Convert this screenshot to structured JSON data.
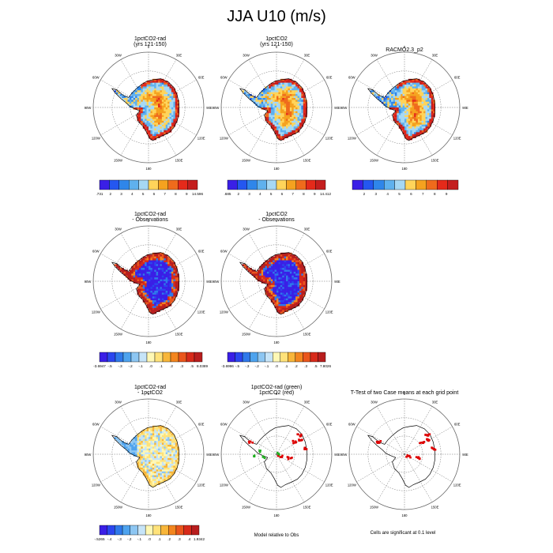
{
  "title": "JJA U10 (m/s)",
  "colors": {
    "scale": [
      "#3a1fe6",
      "#2457f0",
      "#2f86ea",
      "#5fb1ee",
      "#a6d8f4",
      "#ffd45a",
      "#f5a21f",
      "#ef6b1c",
      "#e52a1a",
      "#c41e1e"
    ],
    "diff_scale": [
      "#3a1fe6",
      "#2b46ef",
      "#2f79ea",
      "#4ea3ee",
      "#8dc6f2",
      "#c6e4f8",
      "#fff8b5",
      "#ffe27a",
      "#f8b63a",
      "#f3861f",
      "#ea561c",
      "#d72a1a",
      "#b81e1e"
    ],
    "land_fill": "#ffffff",
    "sig_red": "#dd0000",
    "sig_green": "#1fb01f"
  },
  "map_labels": {
    "lon": [
      "0",
      "30E",
      "60E",
      "90E",
      "120E",
      "150E",
      "180",
      "150W",
      "120W",
      "90W",
      "60W",
      "30W"
    ]
  },
  "panels": [
    {
      "id": "p1",
      "title_line1": "1pctCO2-rad",
      "title_line2": "(yrs 121-150)",
      "kind": "wind"
    },
    {
      "id": "p2",
      "title_line1": "1pctCO2",
      "title_line2": "(yrs 121-150)",
      "kind": "wind"
    },
    {
      "id": "p3",
      "title_line1": "RACMO2.3_p2",
      "title_line2": "",
      "kind": "wind"
    },
    {
      "id": "p4",
      "title_line1": "1pctCO2-rad",
      "title_line2": "- Observations",
      "kind": "bias"
    },
    {
      "id": "p5",
      "title_line1": "1pctCO2",
      "title_line2": "- Observations",
      "kind": "bias"
    },
    {
      "id": "p7",
      "title_line1": "1pctCO2-rad",
      "title_line2": "- 1pctCO2",
      "kind": "diff"
    },
    {
      "id": "p8",
      "title_line1": "1pctCO2-rad (green)",
      "title_line2": "1pctCO2 (red)",
      "kind": "sig2"
    },
    {
      "id": "p9",
      "title_line1": "T-Test of two Case means at each grid point",
      "title_line2": "",
      "kind": "sig1"
    }
  ],
  "colorbars": [
    {
      "id": "cb1",
      "labels": [
        ".731",
        "2",
        "3",
        "4",
        "5",
        "6",
        "7",
        "8",
        "9",
        "14.596"
      ]
    },
    {
      "id": "cb2",
      "labels": [
        ".685",
        "2",
        "3",
        "4",
        "5",
        "6",
        "7",
        "8",
        "9",
        "14.412"
      ]
    },
    {
      "id": "cb3",
      "labels": [
        "",
        "2",
        "3",
        "4",
        "5",
        "6",
        "7",
        "8",
        "9",
        ""
      ]
    },
    {
      "id": "cb4",
      "labels": [
        "-3.6947",
        "-.5",
        "-.3",
        "-.2",
        "-.1",
        ".0",
        ".1",
        ".2",
        ".3",
        ".5",
        "8.0389"
      ]
    },
    {
      "id": "cb5",
      "labels": [
        "-3.6996",
        "-.5",
        "-.3",
        "-.2",
        "-.1",
        ".0",
        ".1",
        ".2",
        ".3",
        ".5",
        "7.8026"
      ]
    },
    {
      "id": "cb7",
      "labels": [
        "-.5265",
        "-.4",
        "-.3",
        "-.2",
        "-.1",
        ".0",
        ".1",
        ".2",
        ".3",
        ".4",
        "1.9342"
      ]
    }
  ],
  "footnotes": {
    "p8": "Model relative to Obs",
    "p9": "Cells are significant at 0.1 level"
  },
  "chart_data": {
    "type": "heatmap",
    "title": "JJA U10 (m/s)",
    "variable": "U10",
    "units": "m/s",
    "season": "JJA",
    "projection": "south polar stereographic",
    "panels": [
      {
        "title": "1pctCO2-rad (yrs 121-150)",
        "color_min": 0.731,
        "color_max": 14.596,
        "levels": [
          2,
          3,
          4,
          5,
          6,
          7,
          8,
          9
        ]
      },
      {
        "title": "1pctCO2 (yrs 121-150)",
        "color_min": 0.685,
        "color_max": 14.412,
        "levels": [
          2,
          3,
          4,
          5,
          6,
          7,
          8,
          9
        ]
      },
      {
        "title": "RACMO2.3_p2",
        "levels": [
          2,
          3,
          4,
          5,
          6,
          7,
          8,
          9
        ]
      },
      {
        "title": "1pctCO2-rad - Observations",
        "color_min": -3.6947,
        "color_max": 8.0389,
        "levels": [
          -0.5,
          -0.3,
          -0.2,
          -0.1,
          0.0,
          0.1,
          0.2,
          0.3,
          0.5
        ]
      },
      {
        "title": "1pctCO2 - Observations",
        "color_min": -3.6996,
        "color_max": 7.8026,
        "levels": [
          -0.5,
          -0.3,
          -0.2,
          -0.1,
          0.0,
          0.1,
          0.2,
          0.3,
          0.5
        ]
      },
      {
        "title": "1pctCO2-rad - 1pctCO2",
        "color_min": -0.5265,
        "color_max": 1.9342,
        "levels": [
          -0.4,
          -0.3,
          -0.2,
          -0.1,
          0.0,
          0.1,
          0.2,
          0.3,
          0.4
        ]
      },
      {
        "title": "1pctCO2-rad (green) 1pctCO2 (red)",
        "note": "Model relative to Obs"
      },
      {
        "title": "T-Test of two Case means at each grid point",
        "note": "Cells are significant at 0.1 level"
      }
    ]
  }
}
